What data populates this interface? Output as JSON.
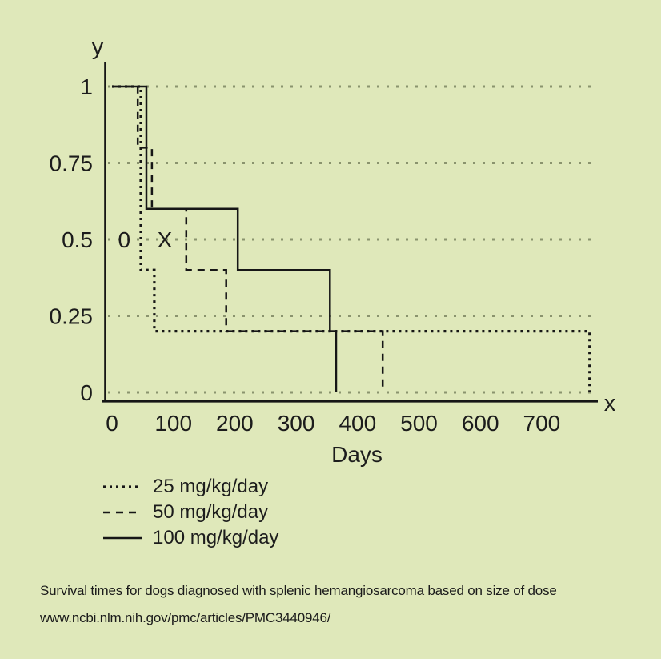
{
  "page": {
    "caption_line1": "Survival times for dogs diagnosed with splenic hemangiosarcoma based on size of dose",
    "caption_line2": "www.ncbi.nlm.nih.gov/pmc/articles/PMC3440946/"
  },
  "chart_data": {
    "type": "line",
    "subtype": "kaplan-meier-step-survival",
    "title": "",
    "xlabel": "Days",
    "ylabel": "",
    "x_axis_letter": "x",
    "y_axis_letter": "y",
    "xlim": [
      0,
      790
    ],
    "ylim": [
      0,
      1
    ],
    "x_ticks": [
      0,
      100,
      200,
      300,
      400,
      500,
      600,
      700
    ],
    "x_tick_labels": [
      "0",
      "100",
      "200",
      "300",
      "400",
      "500",
      "600",
      "700"
    ],
    "y_ticks": [
      1,
      0.75,
      0.5,
      0.25,
      0
    ],
    "y_tick_labels": [
      "1",
      "0.75",
      "0.5",
      "0.25",
      "0"
    ],
    "grid": "horizontal dotted gridlines at each y tick",
    "legend_position": "below-left",
    "colors": {
      "background": "#dfe8ba",
      "line": "#161616",
      "grid_dots": "#8a936e",
      "text": "#1c1c1c"
    },
    "series": [
      {
        "name": "25 mg/kg/day",
        "style": "dotted",
        "points": [
          [
            0,
            1
          ],
          [
            47,
            1
          ],
          [
            47,
            0.4
          ],
          [
            69,
            0.4
          ],
          [
            69,
            0.2
          ],
          [
            778,
            0.2
          ],
          [
            778,
            0
          ]
        ]
      },
      {
        "name": "50 mg/kg/day",
        "style": "dashed",
        "points": [
          [
            0,
            1
          ],
          [
            42,
            1
          ],
          [
            42,
            0.8
          ],
          [
            65,
            0.8
          ],
          [
            65,
            0.6
          ],
          [
            121,
            0.6
          ],
          [
            121,
            0.4
          ],
          [
            186,
            0.4
          ],
          [
            186,
            0.2
          ],
          [
            441,
            0.2
          ],
          [
            441,
            0
          ]
        ]
      },
      {
        "name": "100 mg/kg/day",
        "style": "solid",
        "points": [
          [
            0,
            1
          ],
          [
            56,
            1
          ],
          [
            56,
            0.6
          ],
          [
            205,
            0.6
          ],
          [
            205,
            0.4
          ],
          [
            355,
            0.4
          ],
          [
            355,
            0.2
          ],
          [
            365,
            0.2
          ],
          [
            365,
            0
          ]
        ]
      }
    ],
    "annotations": [
      {
        "text": "0",
        "x": 20,
        "y": 0.5
      },
      {
        "text": "X",
        "x": 86,
        "y": 0.5
      }
    ]
  }
}
